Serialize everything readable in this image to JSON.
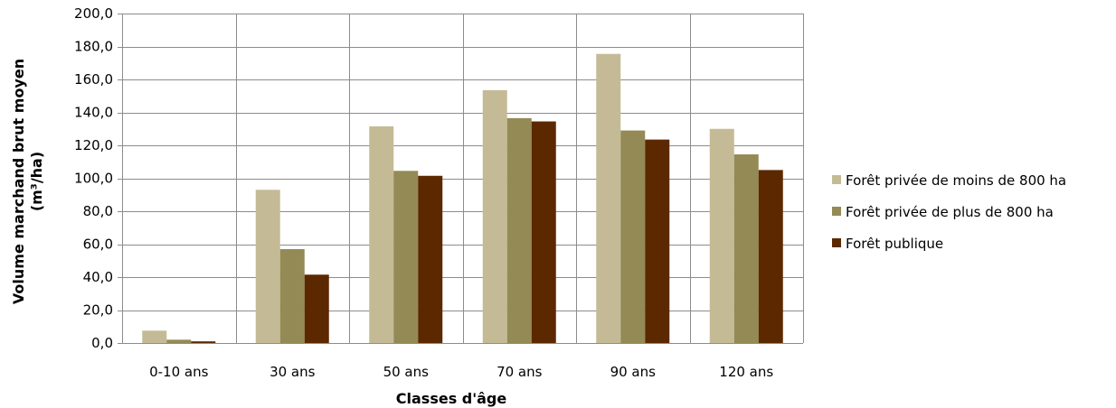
{
  "chart_data": {
    "type": "bar",
    "title": "",
    "xlabel": "Classes d'âge",
    "ylabel": "Volume marchand brut moyen",
    "ylabel_unit": "(m³/ha)",
    "ylim": [
      0,
      200
    ],
    "yticks": [
      0,
      20,
      40,
      60,
      80,
      100,
      120,
      140,
      160,
      180,
      200
    ],
    "ytick_labels": [
      "0,0",
      "20,0",
      "40,0",
      "60,0",
      "80,0",
      "100,0",
      "120,0",
      "140,0",
      "160,0",
      "180,0",
      "200,0"
    ],
    "grid": true,
    "legend_position": "right",
    "categories": [
      "0-10 ans",
      "30 ans",
      "50 ans",
      "70 ans",
      "90 ans",
      "120 ans"
    ],
    "series": [
      {
        "name": "Forêt privée de moins de 800 ha",
        "color": "#c4bb96",
        "values": [
          7.5,
          93.0,
          131.5,
          153.5,
          175.5,
          130.0
        ]
      },
      {
        "name": "Forêt privée de plus de 800 ha",
        "color": "#948a55",
        "values": [
          2.0,
          57.0,
          104.5,
          136.5,
          129.0,
          114.5
        ]
      },
      {
        "name": "Forêt publique",
        "color": "#5c2800",
        "values": [
          1.0,
          41.5,
          101.5,
          134.5,
          123.5,
          105.0
        ]
      }
    ]
  }
}
